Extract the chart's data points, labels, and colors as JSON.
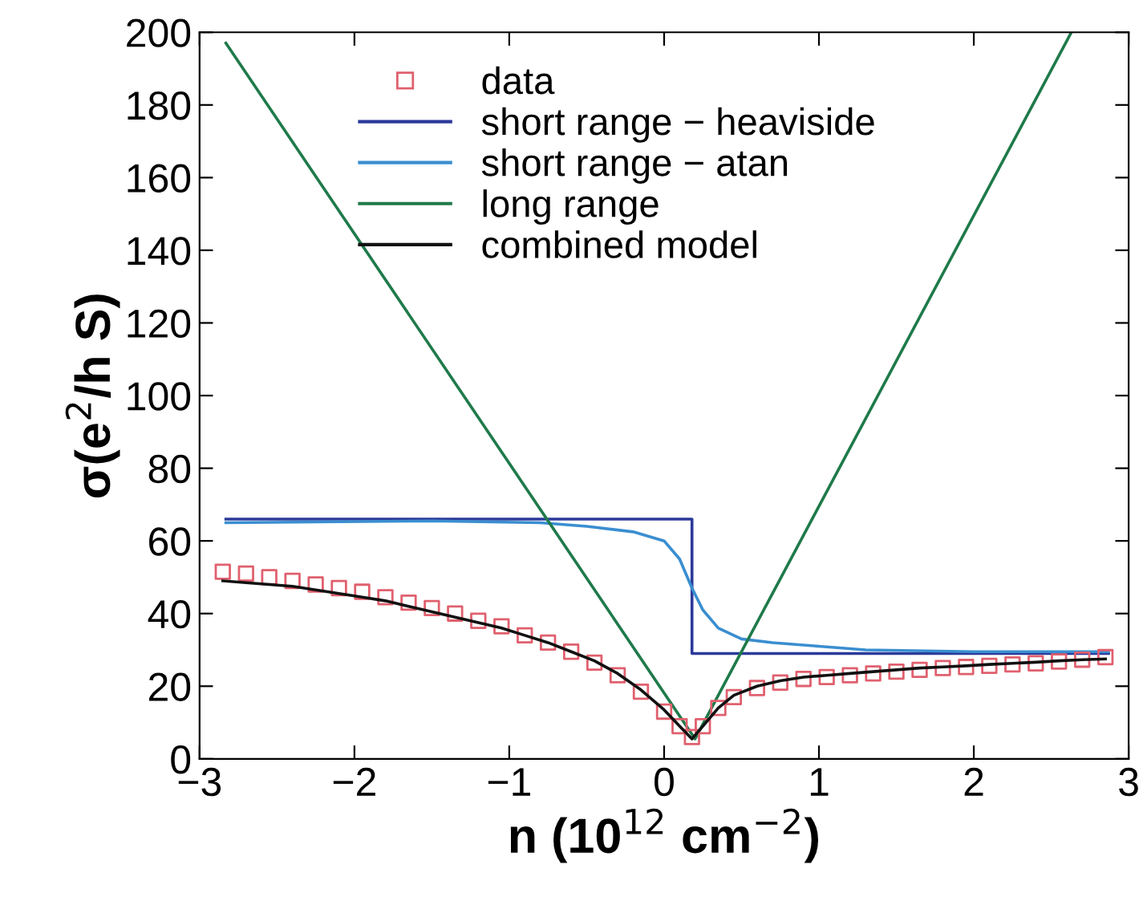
{
  "chart_data": {
    "type": "line",
    "xlabel": "n (10$^{12}$ cm$^{−2}$)",
    "ylabel": "σ(e$^{2}$/h S)",
    "xlim": [
      -3,
      3
    ],
    "ylim": [
      0,
      200
    ],
    "xticks": [
      {
        "value": -3,
        "label": "−3"
      },
      {
        "value": -2,
        "label": "−2"
      },
      {
        "value": -1,
        "label": "−1"
      },
      0,
      1,
      2,
      3
    ],
    "yticks": [
      0,
      20,
      40,
      60,
      80,
      100,
      120,
      140,
      160,
      180,
      200
    ],
    "grid": false,
    "legend": "top",
    "series": [
      {
        "name": "data",
        "type": "scatter",
        "marker": "square",
        "color": "#e0606e",
        "x": [
          -2.85,
          -2.7,
          -2.55,
          -2.4,
          -2.25,
          -2.1,
          -1.95,
          -1.8,
          -1.65,
          -1.5,
          -1.35,
          -1.2,
          -1.05,
          -0.9,
          -0.75,
          -0.6,
          -0.45,
          -0.3,
          -0.15,
          0,
          0.1,
          0.18,
          0.25,
          0.35,
          0.45,
          0.6,
          0.75,
          0.9,
          1.05,
          1.2,
          1.35,
          1.5,
          1.65,
          1.8,
          1.95,
          2.1,
          2.25,
          2.4,
          2.55,
          2.7,
          2.85
        ],
        "values": [
          51.5,
          51,
          50,
          49,
          48,
          47,
          46,
          44.5,
          43,
          41.5,
          40,
          38,
          36.5,
          34,
          32,
          29.5,
          26.5,
          23,
          18.5,
          13,
          9,
          6,
          9,
          14,
          17,
          19.5,
          21,
          22,
          22.5,
          23,
          23.5,
          24,
          24.5,
          25,
          25.3,
          25.6,
          26,
          26.3,
          26.8,
          27.3,
          28
        ]
      },
      {
        "name": "short range − heaviside",
        "color": "#2b3a9a",
        "x": [
          -2.83,
          0.18,
          0.18,
          2.87
        ],
        "values": [
          66,
          66,
          29,
          29
        ]
      },
      {
        "name": "short range − atan",
        "color": "#3a8ed0",
        "x": [
          -2.83,
          -1.5,
          -0.8,
          -0.5,
          -0.2,
          0,
          0.1,
          0.18,
          0.25,
          0.35,
          0.5,
          0.7,
          1.0,
          1.3,
          2.0,
          2.87
        ],
        "values": [
          65,
          65.5,
          65,
          64,
          62.5,
          60,
          55,
          47,
          41,
          36,
          33,
          32,
          31,
          30,
          29.5,
          29.5
        ]
      },
      {
        "name": "long range",
        "color": "#1f7a4a",
        "x": [
          -2.83,
          0.2,
          2.63
        ],
        "values": [
          197,
          5.5,
          200
        ]
      },
      {
        "name": "combined model",
        "color": "#111111",
        "x": [
          -2.85,
          -2.7,
          -2.55,
          -2.4,
          -2.25,
          -2.1,
          -1.95,
          -1.8,
          -1.65,
          -1.5,
          -1.35,
          -1.2,
          -1.05,
          -0.9,
          -0.75,
          -0.6,
          -0.45,
          -0.3,
          -0.15,
          0,
          0.1,
          0.18,
          0.25,
          0.35,
          0.45,
          0.6,
          0.75,
          0.9,
          1.05,
          1.2,
          1.35,
          1.5,
          1.65,
          1.8,
          1.95,
          2.1,
          2.25,
          2.4,
          2.55,
          2.7,
          2.85
        ],
        "values": [
          49,
          48.5,
          48,
          47.5,
          46.5,
          45.5,
          44.5,
          43.5,
          42,
          40.5,
          39,
          37.5,
          36,
          34,
          32,
          29.5,
          27,
          23.5,
          19,
          13.5,
          9,
          5.5,
          9,
          14,
          17.5,
          20,
          21.5,
          22.5,
          23,
          23.5,
          24,
          24.5,
          25,
          25.3,
          25.6,
          26,
          26.3,
          26.6,
          27,
          27.3,
          27.5
        ]
      }
    ]
  }
}
